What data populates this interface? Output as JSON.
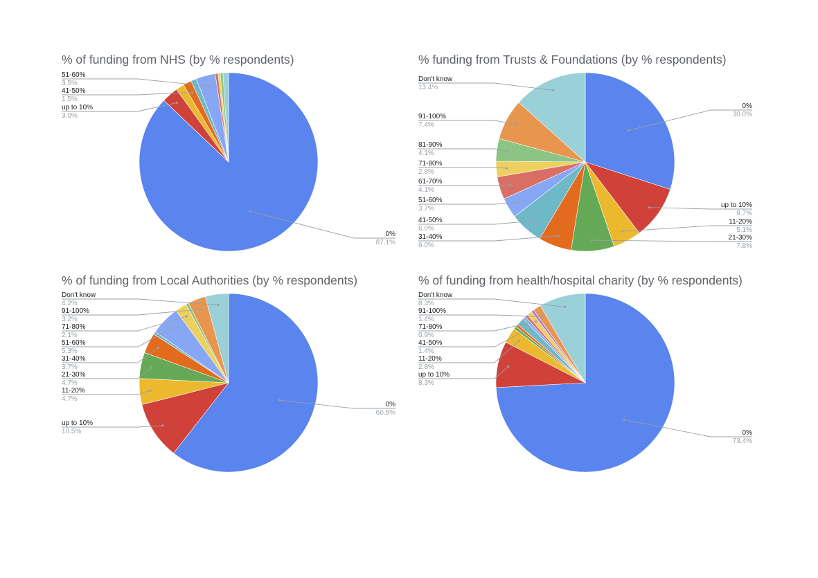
{
  "chart_data": [
    {
      "type": "pie",
      "title": "% of funding from NHS (by % respondents)",
      "slices": [
        {
          "label": "0%",
          "value": 87.1,
          "color": "#5a84ee"
        },
        {
          "label": "up to 10%",
          "value": 3.0,
          "color": "#cf4139"
        },
        {
          "label": "11-20%",
          "value": 1.5,
          "color": "#ecb92e"
        },
        {
          "label": "41-50%",
          "value": 1.5,
          "color": "#e36b1e"
        },
        {
          "label": "",
          "value": 1.0,
          "color": "#6eb8c8"
        },
        {
          "label": "51-60%",
          "value": 3.5,
          "color": "#87a7f5"
        },
        {
          "label": "",
          "value": 0.5,
          "color": "#d96e64"
        },
        {
          "label": "",
          "value": 0.4,
          "color": "#eed05e"
        },
        {
          "label": "",
          "value": 0.5,
          "color": "#8bc483"
        },
        {
          "label": "",
          "value": 1.0,
          "color": "#9ad0d8"
        }
      ],
      "callouts": [
        {
          "label": "51-60%",
          "pct": "3.5%",
          "slice": 5,
          "side": "left"
        },
        {
          "label": "41-50%",
          "pct": "1.5%",
          "slice": 3,
          "side": "left"
        },
        {
          "label": "up to 10%",
          "pct": "3.0%",
          "slice": 1,
          "side": "left"
        },
        {
          "label": "0%",
          "pct": "87.1%",
          "slice": 0,
          "side": "right"
        }
      ]
    },
    {
      "type": "pie",
      "title": "% funding from Trusts & Foundations (by % respondents)",
      "slices": [
        {
          "label": "0%",
          "value": 30.0,
          "color": "#5a84ee"
        },
        {
          "label": "up to 10%",
          "value": 9.7,
          "color": "#cf4139"
        },
        {
          "label": "11-20%",
          "value": 5.1,
          "color": "#ecb92e"
        },
        {
          "label": "21-30%",
          "value": 7.8,
          "color": "#65a957"
        },
        {
          "label": "31-40%",
          "value": 6.0,
          "color": "#e36b1e"
        },
        {
          "label": "41-50%",
          "value": 6.0,
          "color": "#6eb8c8"
        },
        {
          "label": "51-60%",
          "value": 3.7,
          "color": "#87a7f5"
        },
        {
          "label": "61-70%",
          "value": 4.1,
          "color": "#d96e64"
        },
        {
          "label": "71-80%",
          "value": 2.8,
          "color": "#eed05e"
        },
        {
          "label": "81-90%",
          "value": 4.1,
          "color": "#8bc483"
        },
        {
          "label": "91-100%",
          "value": 7.4,
          "color": "#e8954e"
        },
        {
          "label": "Don't know",
          "value": 13.4,
          "color": "#9ad0d8"
        }
      ],
      "callouts": [
        {
          "label": "Don't know",
          "pct": "13.4%",
          "slice": 11,
          "side": "left"
        },
        {
          "label": "91-100%",
          "pct": "7.4%",
          "slice": 10,
          "side": "left"
        },
        {
          "label": "81-90%",
          "pct": "4.1%",
          "slice": 9,
          "side": "left"
        },
        {
          "label": "71-80%",
          "pct": "2.8%",
          "slice": 8,
          "side": "left"
        },
        {
          "label": "61-70%",
          "pct": "4.1%",
          "slice": 7,
          "side": "left"
        },
        {
          "label": "51-60%",
          "pct": "3.7%",
          "slice": 6,
          "side": "left"
        },
        {
          "label": "41-50%",
          "pct": "6.0%",
          "slice": 5,
          "side": "left"
        },
        {
          "label": "31-40%",
          "pct": "6.0%",
          "slice": 4,
          "side": "left"
        },
        {
          "label": "0%",
          "pct": "30.0%",
          "slice": 0,
          "side": "right"
        },
        {
          "label": "up to 10%",
          "pct": "9.7%",
          "slice": 1,
          "side": "right"
        },
        {
          "label": "11-20%",
          "pct": "5.1%",
          "slice": 2,
          "side": "right"
        },
        {
          "label": "21-30%",
          "pct": "7.8%",
          "slice": 3,
          "side": "right"
        }
      ]
    },
    {
      "type": "pie",
      "title": "% of funding from Local Authorities (by % respondents)",
      "slices": [
        {
          "label": "0%",
          "value": 60.5,
          "color": "#5a84ee"
        },
        {
          "label": "up to 10%",
          "value": 10.5,
          "color": "#cf4139"
        },
        {
          "label": "11-20%",
          "value": 4.7,
          "color": "#ecb92e"
        },
        {
          "label": "21-30%",
          "value": 4.7,
          "color": "#65a957"
        },
        {
          "label": "31-40%",
          "value": 3.7,
          "color": "#e36b1e"
        },
        {
          "label": "",
          "value": 0.5,
          "color": "#6eb8c8"
        },
        {
          "label": "51-60%",
          "value": 5.3,
          "color": "#87a7f5"
        },
        {
          "label": "71-80%",
          "value": 2.1,
          "color": "#eed05e"
        },
        {
          "label": "",
          "value": 0.5,
          "color": "#8bc483"
        },
        {
          "label": "91-100%",
          "value": 3.2,
          "color": "#e8954e"
        },
        {
          "label": "Don't know",
          "value": 4.2,
          "color": "#9ad0d8"
        }
      ],
      "callouts": [
        {
          "label": "Don't know",
          "pct": "4.2%",
          "slice": 10,
          "side": "left"
        },
        {
          "label": "91-100%",
          "pct": "3.2%",
          "slice": 9,
          "side": "left"
        },
        {
          "label": "71-80%",
          "pct": "2.1%",
          "slice": 7,
          "side": "left"
        },
        {
          "label": "51-60%",
          "pct": "5.3%",
          "slice": 6,
          "side": "left"
        },
        {
          "label": "31-40%",
          "pct": "3.7%",
          "slice": 4,
          "side": "left"
        },
        {
          "label": "21-30%",
          "pct": "4.7%",
          "slice": 3,
          "side": "left"
        },
        {
          "label": "11-20%",
          "pct": "4.7%",
          "slice": 2,
          "side": "left"
        },
        {
          "label": "up to 10%",
          "pct": "10.5%",
          "slice": 1,
          "side": "left"
        },
        {
          "label": "0%",
          "pct": "60.5%",
          "slice": 0,
          "side": "right"
        }
      ]
    },
    {
      "type": "pie",
      "title": "% of funding from health/hospital charity (by % respondents)",
      "slices": [
        {
          "label": "0%",
          "value": 73.4,
          "color": "#5a84ee"
        },
        {
          "label": "up to 10%",
          "value": 8.3,
          "color": "#cf4139"
        },
        {
          "label": "11-20%",
          "value": 2.8,
          "color": "#ecb92e"
        },
        {
          "label": "",
          "value": 0.5,
          "color": "#65a957"
        },
        {
          "label": "",
          "value": 0.5,
          "color": "#e36b1e"
        },
        {
          "label": "41-50%",
          "value": 1.4,
          "color": "#6eb8c8"
        },
        {
          "label": "",
          "value": 0.5,
          "color": "#87a7f5"
        },
        {
          "label": "",
          "value": 0.5,
          "color": "#d96e64"
        },
        {
          "label": "71-80%",
          "value": 0.9,
          "color": "#eed05e"
        },
        {
          "label": "",
          "value": 0.5,
          "color": "#b07ad0"
        },
        {
          "label": "91-100%",
          "value": 1.4,
          "color": "#e8954e"
        },
        {
          "label": "Don't know",
          "value": 8.3,
          "color": "#9ad0d8"
        }
      ],
      "callouts": [
        {
          "label": "Don't know",
          "pct": "8.3%",
          "slice": 11,
          "side": "left"
        },
        {
          "label": "91-100%",
          "pct": "1.4%",
          "slice": 10,
          "side": "left"
        },
        {
          "label": "71-80%",
          "pct": "0.9%",
          "slice": 8,
          "side": "left"
        },
        {
          "label": "41-50%",
          "pct": "1.4%",
          "slice": 5,
          "side": "left"
        },
        {
          "label": "11-20%",
          "pct": "2.8%",
          "slice": 2,
          "side": "left"
        },
        {
          "label": "up to 10%",
          "pct": "8.3%",
          "slice": 1,
          "side": "left"
        },
        {
          "label": "0%",
          "pct": "73.4%",
          "slice": 0,
          "side": "right"
        }
      ]
    }
  ]
}
